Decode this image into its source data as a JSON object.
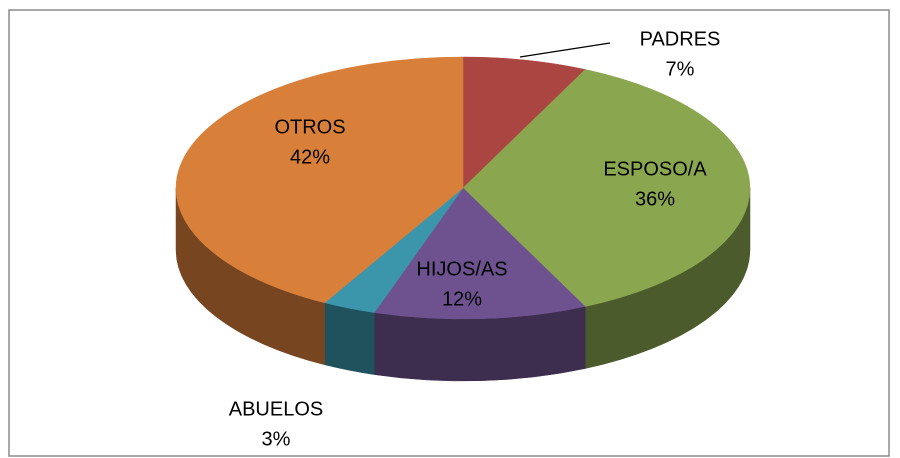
{
  "chart_data": {
    "type": "pie",
    "categories": [
      "PADRES",
      "ESPOSO/A",
      "HIJOS/AS",
      "ABUELOS",
      "OTROS"
    ],
    "values": [
      7,
      36,
      12,
      3,
      42
    ],
    "value_labels": [
      "7%",
      "36%",
      "12%",
      "3%",
      "42%"
    ],
    "colors": [
      "#ab4542",
      "#8aa64f",
      "#6e5290",
      "#3b95ab",
      "#d8803a"
    ]
  }
}
